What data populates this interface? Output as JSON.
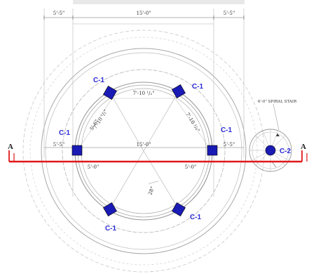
{
  "colors": {
    "column": "#1a1ab5",
    "label": "#2b2bd6",
    "section_line": "#e01818",
    "linework": "#b5b5b5",
    "dim_text": "#333333"
  },
  "dimensions": {
    "top_left": "5'-5\"",
    "top_center": "15'-0\"",
    "top_right": "5'-5\"",
    "inner_top_chord": "7'-10 ¹/₂\"",
    "inner_left_diag": "7'-10 ¹/₂\"",
    "inner_right_diag": "7'-10 ¹/₂\"",
    "left_diag_small": "5'-6\"",
    "mid_left": "5'-5\"",
    "mid_center": "15'-0\"",
    "mid_right": "5'-5\"",
    "radius_left": "5'-0\"",
    "radius_right": "5'-0\"",
    "angle": "28°",
    "spiral_stair": "6'-0\" SPIRAL STAIR"
  },
  "labels": {
    "col_top_left": "C-1",
    "col_top_right": "C-1",
    "col_mid_left": "C-1",
    "col_mid_right": "C-1",
    "col_bottom_left": "C-1",
    "col_bottom_right": "C-1",
    "col_stair": "C-2"
  },
  "section": {
    "left_marker": "A",
    "right_marker": "A"
  }
}
